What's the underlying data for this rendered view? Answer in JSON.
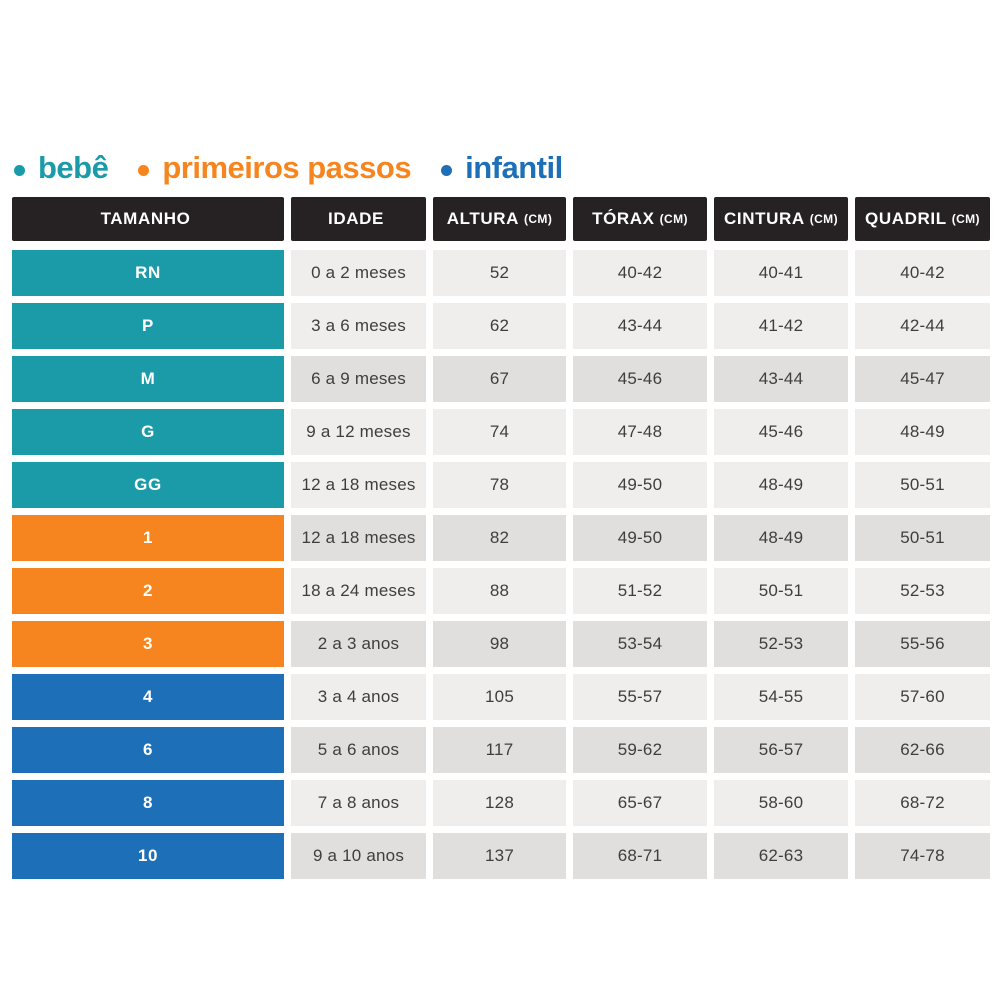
{
  "chart_data": {
    "type": "table",
    "legend": {
      "items": [
        {
          "id": "bebe",
          "label": "bebê",
          "color": "#1b9aa8"
        },
        {
          "id": "primeiros-passos",
          "label": "primeiros passos",
          "color": "#f6851f"
        },
        {
          "id": "infantil",
          "label": "infantil",
          "color": "#1d70b7"
        }
      ]
    },
    "table": {
      "header_bg": "#262223",
      "header_text_color": "#ffffff",
      "cell_text_color": "#3e3e3e",
      "cell_colors": {
        "light": "#efeeec",
        "dark": "#e0dfdd"
      },
      "headers": [
        {
          "label": "TAMANHO",
          "unit": ""
        },
        {
          "label": "IDADE",
          "unit": ""
        },
        {
          "label": "ALTURA",
          "unit": "(CM)"
        },
        {
          "label": "TÓRAX",
          "unit": "(CM)"
        },
        {
          "label": "CINTURA",
          "unit": "(CM)"
        },
        {
          "label": "QUADRIL",
          "unit": "(CM)"
        }
      ],
      "rows": [
        {
          "size": "RN",
          "group": "bebe",
          "color": "#1b9aa8",
          "shade": "light",
          "idade": "0 a 2 meses",
          "altura": "52",
          "torax": "40-42",
          "cintura": "40-41",
          "quadril": "40-42"
        },
        {
          "size": "P",
          "group": "bebe",
          "color": "#1b9aa8",
          "shade": "light",
          "idade": "3 a 6 meses",
          "altura": "62",
          "torax": "43-44",
          "cintura": "41-42",
          "quadril": "42-44"
        },
        {
          "size": "M",
          "group": "bebe",
          "color": "#1b9aa8",
          "shade": "dark",
          "idade": "6 a 9 meses",
          "altura": "67",
          "torax": "45-46",
          "cintura": "43-44",
          "quadril": "45-47"
        },
        {
          "size": "G",
          "group": "bebe",
          "color": "#1b9aa8",
          "shade": "light",
          "idade": "9 a 12 meses",
          "altura": "74",
          "torax": "47-48",
          "cintura": "45-46",
          "quadril": "48-49"
        },
        {
          "size": "GG",
          "group": "bebe",
          "color": "#1b9aa8",
          "shade": "light",
          "idade": "12 a 18 meses",
          "altura": "78",
          "torax": "49-50",
          "cintura": "48-49",
          "quadril": "50-51"
        },
        {
          "size": "1",
          "group": "primeiros-passos",
          "color": "#f6851f",
          "shade": "dark",
          "idade": "12 a 18 meses",
          "altura": "82",
          "torax": "49-50",
          "cintura": "48-49",
          "quadril": "50-51"
        },
        {
          "size": "2",
          "group": "primeiros-passos",
          "color": "#f6851f",
          "shade": "light",
          "idade": "18 a 24 meses",
          "altura": "88",
          "torax": "51-52",
          "cintura": "50-51",
          "quadril": "52-53"
        },
        {
          "size": "3",
          "group": "primeiros-passos",
          "color": "#f6851f",
          "shade": "dark",
          "idade": "2 a 3 anos",
          "altura": "98",
          "torax": "53-54",
          "cintura": "52-53",
          "quadril": "55-56"
        },
        {
          "size": "4",
          "group": "infantil",
          "color": "#1d70b7",
          "shade": "light",
          "idade": "3 a 4 anos",
          "altura": "105",
          "torax": "55-57",
          "cintura": "54-55",
          "quadril": "57-60"
        },
        {
          "size": "6",
          "group": "infantil",
          "color": "#1d70b7",
          "shade": "dark",
          "idade": "5 a 6 anos",
          "altura": "117",
          "torax": "59-62",
          "cintura": "56-57",
          "quadril": "62-66"
        },
        {
          "size": "8",
          "group": "infantil",
          "color": "#1d70b7",
          "shade": "light",
          "idade": "7 a 8 anos",
          "altura": "128",
          "torax": "65-67",
          "cintura": "58-60",
          "quadril": "68-72"
        },
        {
          "size": "10",
          "group": "infantil",
          "color": "#1d70b7",
          "shade": "dark",
          "idade": "9 a 10 anos",
          "altura": "137",
          "torax": "68-71",
          "cintura": "62-63",
          "quadril": "74-78"
        }
      ]
    }
  }
}
